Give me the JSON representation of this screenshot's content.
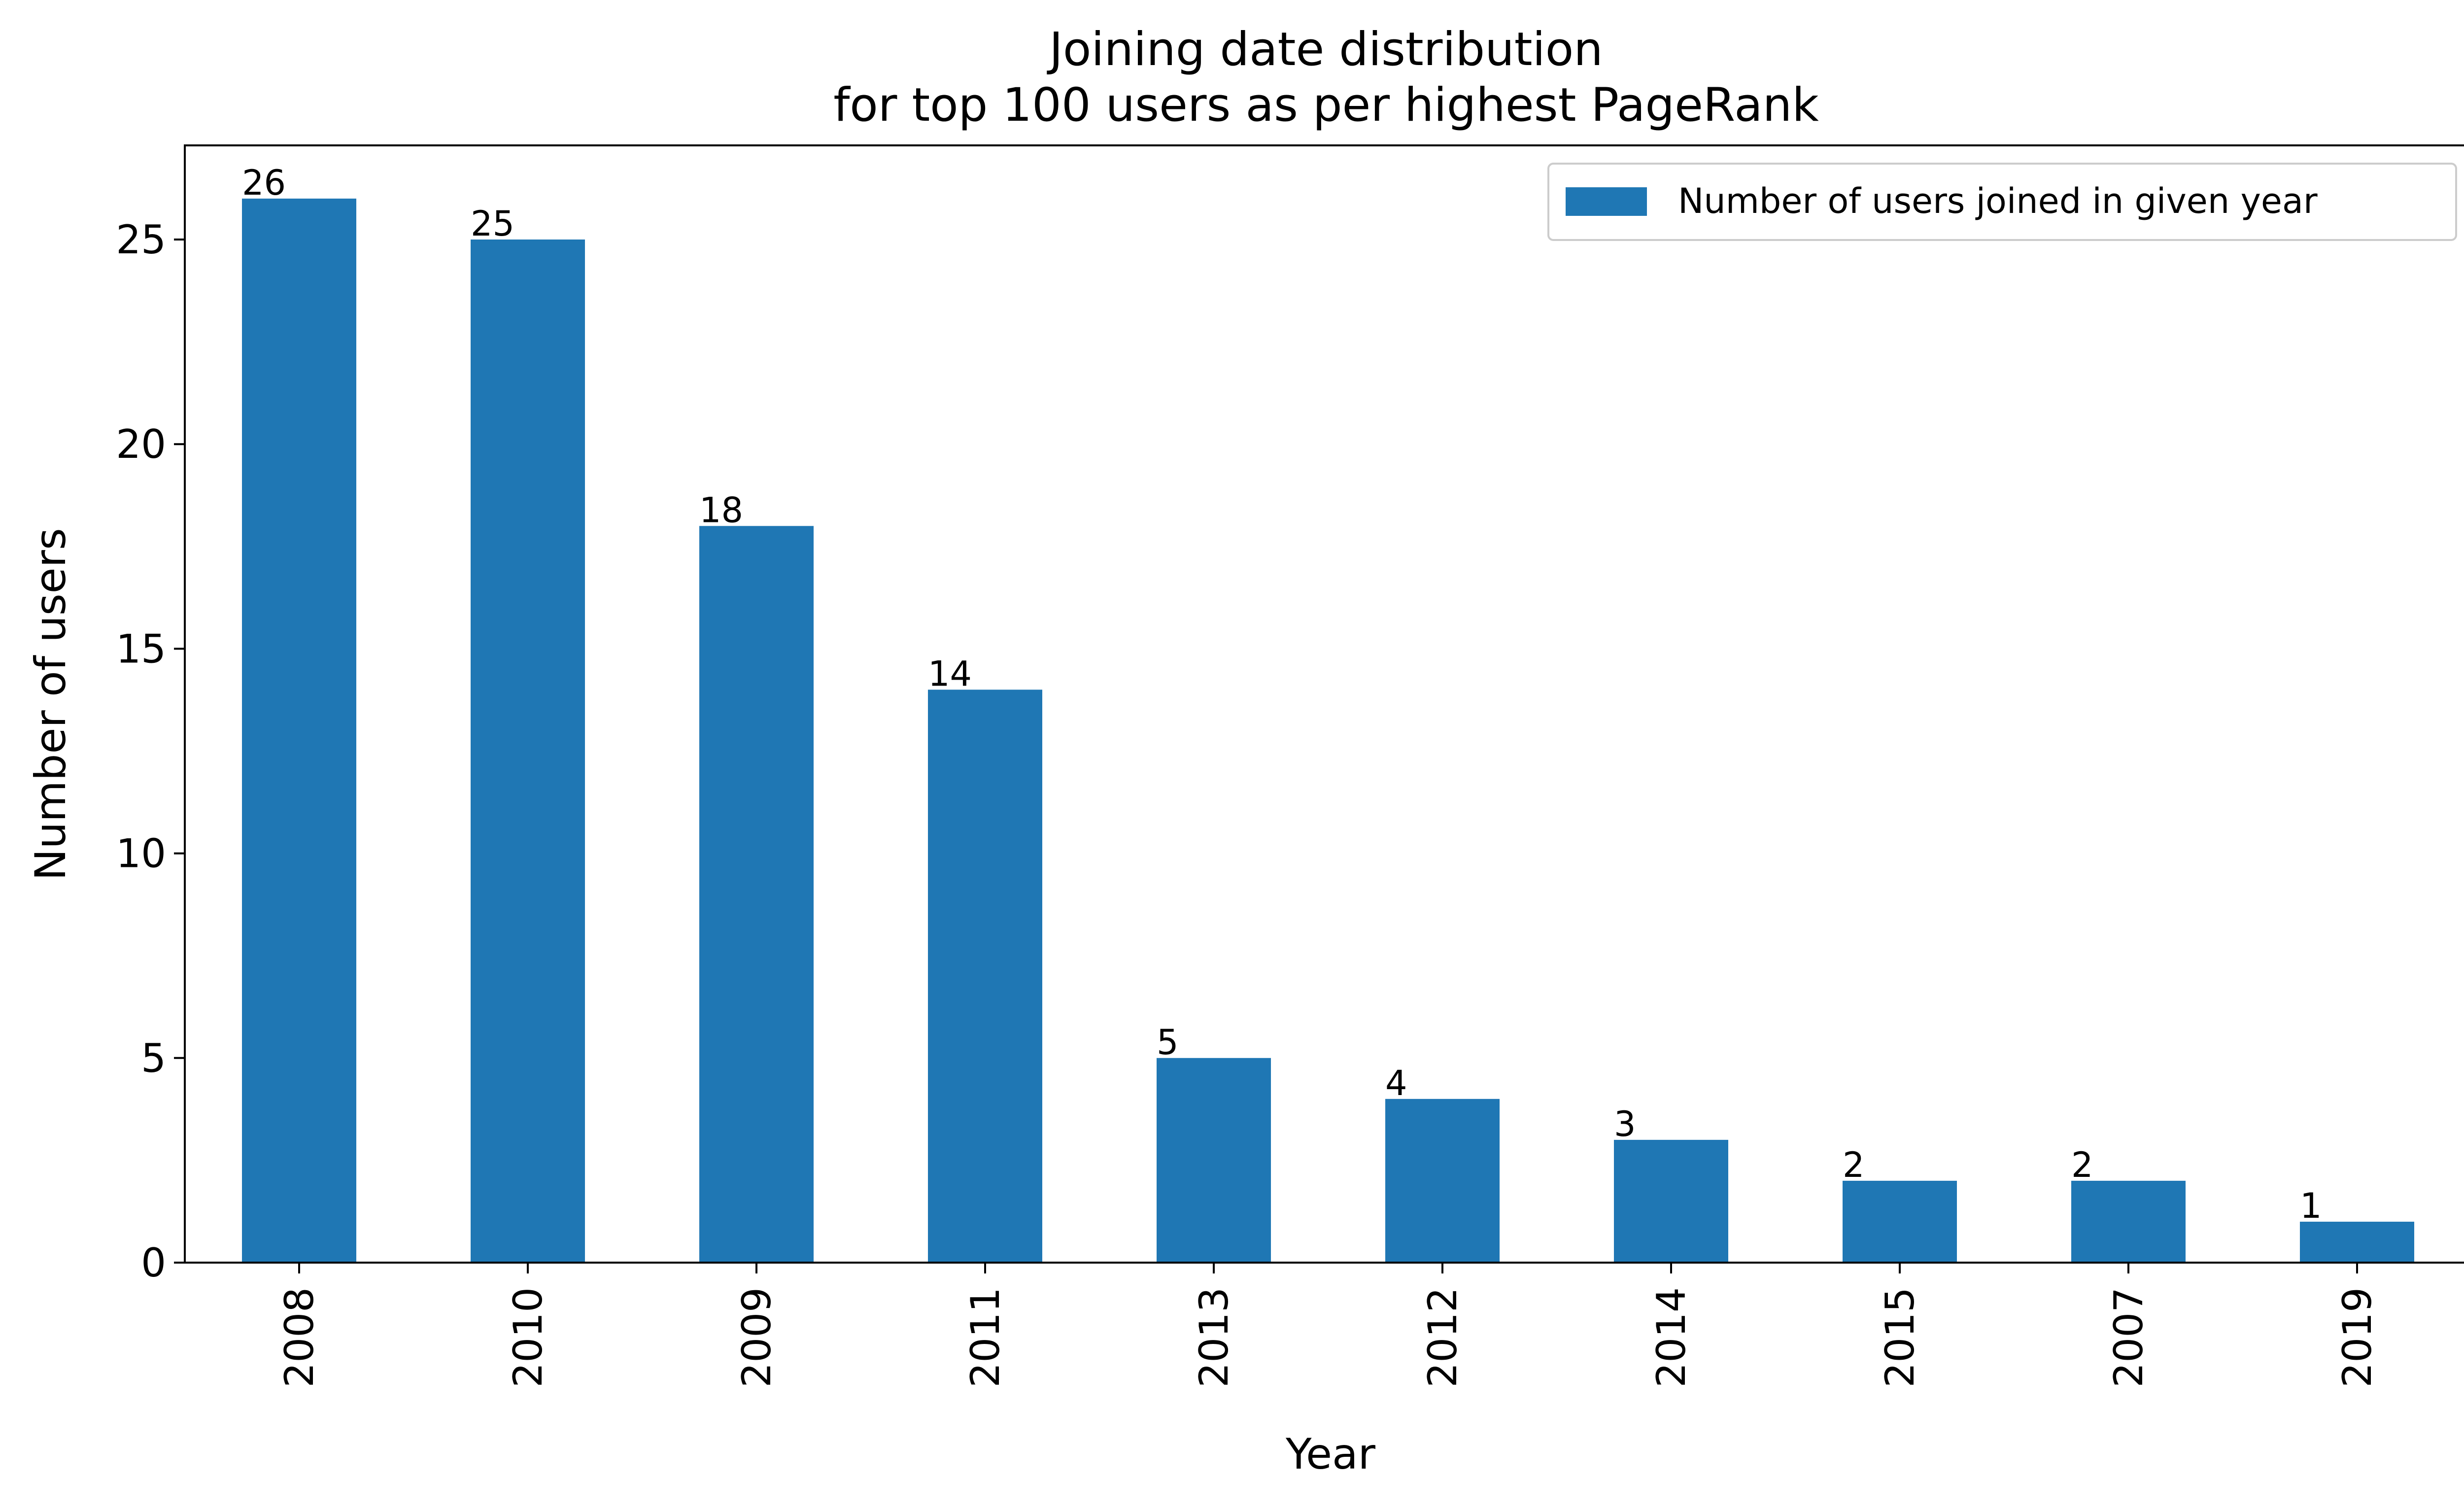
{
  "chart_data": {
    "type": "bar",
    "title_lines": [
      "Joining date distribution",
      "for top 100 users as per highest PageRank"
    ],
    "xlabel": "Year",
    "ylabel": "Number of users",
    "categories": [
      "2008",
      "2010",
      "2009",
      "2011",
      "2013",
      "2012",
      "2014",
      "2015",
      "2007",
      "2019"
    ],
    "series": [
      {
        "name": "Number of users joined in given year",
        "values": [
          26,
          25,
          18,
          14,
          5,
          4,
          3,
          2,
          2,
          1
        ],
        "color": "#1f77b4"
      }
    ],
    "ylim": [
      0,
      27.3
    ],
    "yticks": [
      0,
      5,
      10,
      15,
      20,
      25
    ],
    "grid": false,
    "legend_position": "top-right",
    "xtick_rotation": "vertical",
    "data_labels": true
  }
}
